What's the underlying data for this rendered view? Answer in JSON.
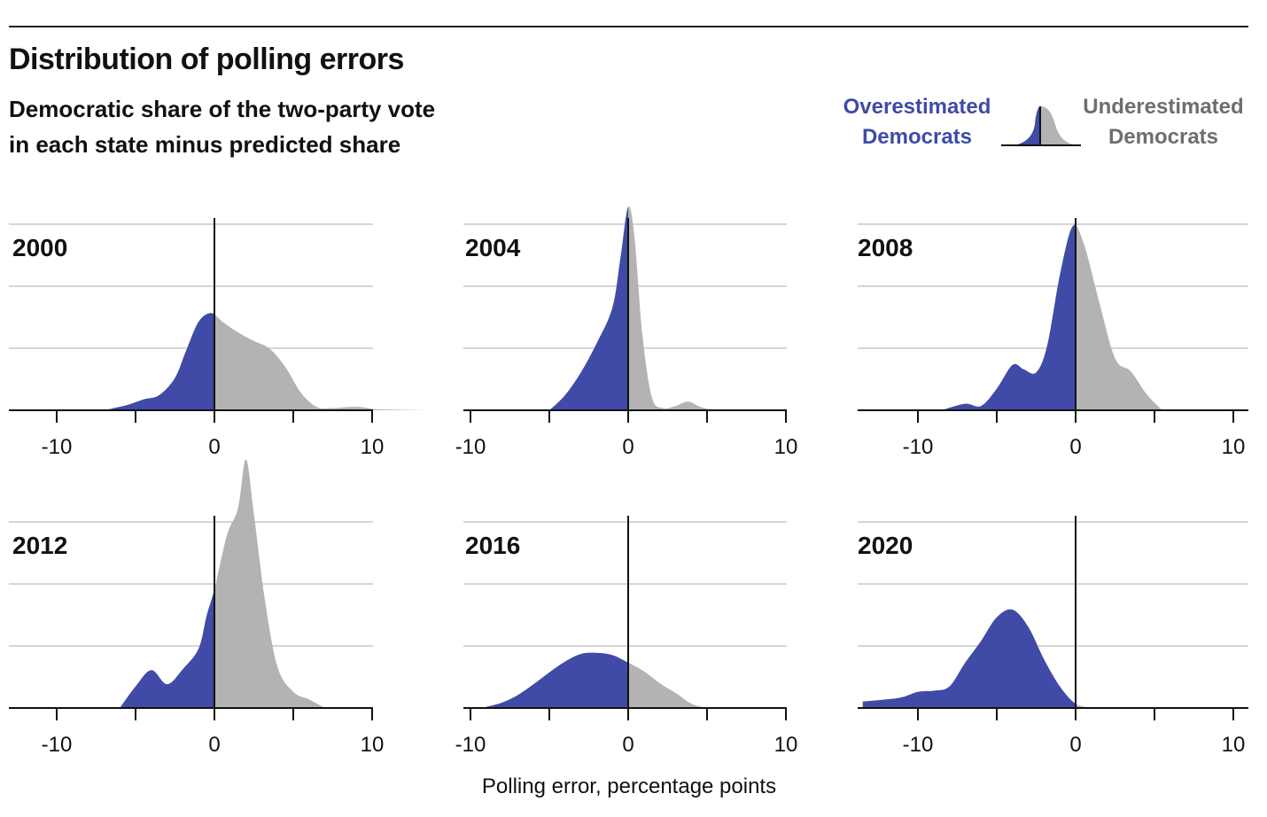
{
  "title": "Distribution of polling errors",
  "subtitle": [
    "Democratic share of the two-party vote",
    "in each state minus predicted share"
  ],
  "legend": {
    "left": [
      "Overestimated",
      "Democrats"
    ],
    "right": [
      "Underestimated",
      "Democrats"
    ]
  },
  "colors": {
    "over": "#3f4ba6",
    "under": "#b3b3b3",
    "left_text": "#3f4ba6",
    "right_text": "#6e6e6e",
    "grid": "#d6d6d6",
    "axis": "#111111"
  },
  "chart_data": {
    "type": "area",
    "description_type": "density",
    "xlabel": "Polling error, percentage points",
    "xlim": [
      -10,
      10
    ],
    "xticks": [
      -10,
      0,
      10
    ],
    "panels": [
      {
        "year": "2000",
        "x": [
          -7,
          -5.5,
          -4.5,
          -3.5,
          -2.5,
          -1.8,
          -1,
          -0.2,
          0.5,
          1.5,
          2.5,
          3.5,
          4.5,
          5.5,
          6.5,
          7.5,
          8.5,
          9.3,
          10.2,
          11.5,
          13.5
        ],
        "density": [
          0,
          0.05,
          0.1,
          0.14,
          0.3,
          0.55,
          0.82,
          0.9,
          0.82,
          0.72,
          0.64,
          0.57,
          0.4,
          0.16,
          0.03,
          0.02,
          0.03,
          0.03,
          0.01,
          0.005,
          0
        ]
      },
      {
        "year": "2004",
        "x": [
          -5,
          -4,
          -3,
          -2,
          -1,
          -0.5,
          0,
          0.4,
          0.9,
          1.5,
          2.2,
          3,
          3.8,
          4.6,
          5.5
        ],
        "density": [
          0,
          0.14,
          0.35,
          0.62,
          0.95,
          1.4,
          1.88,
          1.6,
          0.7,
          0.12,
          0.02,
          0.04,
          0.08,
          0.03,
          0
        ]
      },
      {
        "year": "2008",
        "x": [
          -8.5,
          -7,
          -6,
          -5,
          -4,
          -3.3,
          -2.5,
          -1.8,
          -1,
          -0.2,
          0.5,
          1.5,
          2.5,
          3.5,
          4.5,
          5.5
        ],
        "density": [
          0,
          0.06,
          0.04,
          0.2,
          0.42,
          0.38,
          0.35,
          0.6,
          1.25,
          1.7,
          1.55,
          1.0,
          0.48,
          0.36,
          0.15,
          0
        ]
      },
      {
        "year": "2012",
        "x": [
          -6,
          -5,
          -4,
          -3,
          -2,
          -1,
          -0.5,
          0,
          0.8,
          1.5,
          2,
          2.5,
          3.2,
          4,
          5,
          6,
          7
        ],
        "density": [
          0,
          0.2,
          0.35,
          0.22,
          0.36,
          0.55,
          0.85,
          1.1,
          1.6,
          1.85,
          2.3,
          1.8,
          1.0,
          0.38,
          0.15,
          0.08,
          0
        ]
      },
      {
        "year": "2016",
        "x": [
          -9,
          -8,
          -7,
          -6,
          -5,
          -4,
          -3,
          -2,
          -1,
          0,
          1,
          2,
          3,
          4,
          5
        ],
        "density": [
          0.01,
          0.05,
          0.12,
          0.22,
          0.33,
          0.43,
          0.5,
          0.51,
          0.49,
          0.42,
          0.34,
          0.23,
          0.14,
          0.04,
          0
        ]
      },
      {
        "year": "2020",
        "x": [
          -13.5,
          -12,
          -11,
          -10,
          -9,
          -8,
          -7,
          -6,
          -5,
          -4,
          -3,
          -2,
          -1,
          0,
          1,
          2
        ],
        "density": [
          0.06,
          0.08,
          0.1,
          0.15,
          0.16,
          0.2,
          0.42,
          0.62,
          0.84,
          0.91,
          0.75,
          0.45,
          0.2,
          0.04,
          0.005,
          0
        ]
      }
    ]
  },
  "tick_labels": [
    "-10",
    "0",
    "10"
  ]
}
